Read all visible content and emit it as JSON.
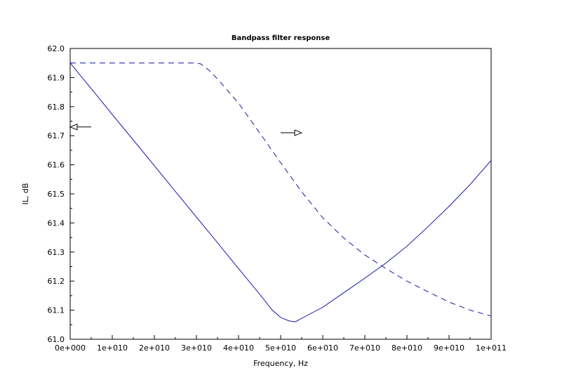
{
  "chart_data": {
    "type": "line",
    "title": "Bandpass filter response",
    "xlabel": "Frequency, Hz",
    "ylabel": "IL, dB",
    "xlim": [
      0,
      100000000000
    ],
    "ylim": [
      61.0,
      62.0
    ],
    "x_ticks": [
      0,
      10000000000,
      20000000000,
      30000000000,
      40000000000,
      50000000000,
      60000000000,
      70000000000,
      80000000000,
      90000000000,
      100000000000
    ],
    "x_tick_labels": [
      "0e+000",
      "1e+010",
      "2e+010",
      "3e+010",
      "4e+010",
      "5e+010",
      "6e+010",
      "7e+010",
      "8e+010",
      "9e+010",
      "1e+011"
    ],
    "y_ticks": [
      61.0,
      61.1,
      61.2,
      61.3,
      61.4,
      61.5,
      61.6,
      61.7,
      61.8,
      61.9,
      62.0
    ],
    "y_tick_labels": [
      "61.0",
      "61.1",
      "61.2",
      "61.3",
      "61.4",
      "61.5",
      "61.6",
      "61.7",
      "61.8",
      "61.9",
      "62.0"
    ],
    "grid": false,
    "series_color": "#2b2bb0",
    "series": [
      {
        "style": "solid",
        "x": [
          0,
          5000000000,
          10000000000,
          15000000000,
          20000000000,
          25000000000,
          30000000000,
          35000000000,
          40000000000,
          45000000000,
          48000000000,
          50000000000,
          52000000000,
          53500000000,
          55000000000,
          60000000000,
          65000000000,
          70000000000,
          75000000000,
          80000000000,
          85000000000,
          90000000000,
          95000000000,
          100000000000
        ],
        "y": [
          61.95,
          61.862,
          61.773,
          61.685,
          61.597,
          61.508,
          61.42,
          61.332,
          61.243,
          61.155,
          61.1,
          61.075,
          61.063,
          61.06,
          61.072,
          61.11,
          61.16,
          61.21,
          61.262,
          61.32,
          61.387,
          61.457,
          61.532,
          61.615
        ]
      },
      {
        "style": "dashed",
        "x": [
          0,
          10000000000,
          20000000000,
          30000000000,
          31000000000,
          33000000000,
          35000000000,
          40000000000,
          45000000000,
          50000000000,
          55000000000,
          60000000000,
          65000000000,
          70000000000,
          75000000000,
          80000000000,
          85000000000,
          90000000000,
          95000000000,
          100000000000
        ],
        "y": [
          61.95,
          61.95,
          61.95,
          61.95,
          61.947,
          61.925,
          61.895,
          61.812,
          61.71,
          61.607,
          61.507,
          61.418,
          61.348,
          61.29,
          61.243,
          61.2,
          61.163,
          61.128,
          61.1,
          61.08
        ]
      }
    ],
    "annotations": [
      {
        "type": "arrow",
        "direction": "left",
        "series": "solid",
        "x_from": 5000000000,
        "x_to": 0,
        "y": 61.73
      },
      {
        "type": "arrow",
        "direction": "right",
        "series": "dashed",
        "x_from": 50000000000,
        "x_to": 55000000000,
        "y": 61.71
      }
    ]
  }
}
